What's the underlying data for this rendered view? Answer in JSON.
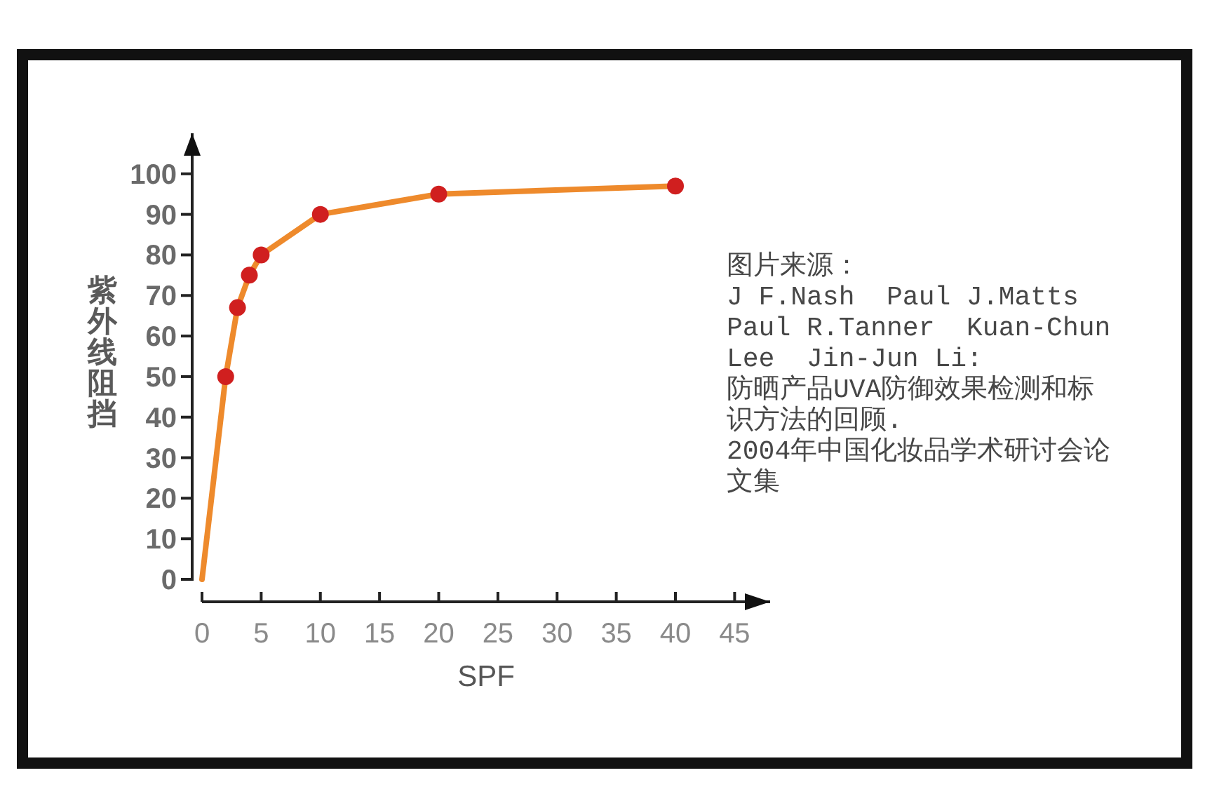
{
  "chart_data": {
    "type": "line",
    "xlabel": "SPF",
    "ylabel": "紫外线阻挡",
    "x": [
      0,
      2,
      3,
      4,
      5,
      10,
      20,
      40
    ],
    "series": [
      {
        "type": "line",
        "color": "#ee8a2c",
        "marker": "none",
        "values": [
          0,
          50,
          67,
          75,
          80,
          90,
          95,
          97
        ]
      },
      {
        "type": "scatter",
        "color": "#d01f1f",
        "marker": "circle",
        "x": [
          2,
          3,
          4,
          5,
          10,
          20,
          40
        ],
        "values": [
          50,
          67,
          75,
          80,
          90,
          95,
          97
        ]
      }
    ],
    "xlim": [
      0,
      48
    ],
    "ylim": [
      0,
      110
    ],
    "xticks": [
      0,
      5,
      10,
      15,
      20,
      25,
      30,
      35,
      40,
      45
    ],
    "yticks": [
      0,
      10,
      20,
      30,
      40,
      50,
      60,
      70,
      80,
      90,
      100
    ],
    "annotations": [
      "图片来源：",
      "J F.Nash  Paul J.Matts  Paul R.Tanner  Kuan-Chun Lee  Jin-Jun Li:",
      "防晒产品UVA防御效果检测和标识方法的回顾.",
      "2004年中国化妆品学术研讨会论文集"
    ]
  }
}
